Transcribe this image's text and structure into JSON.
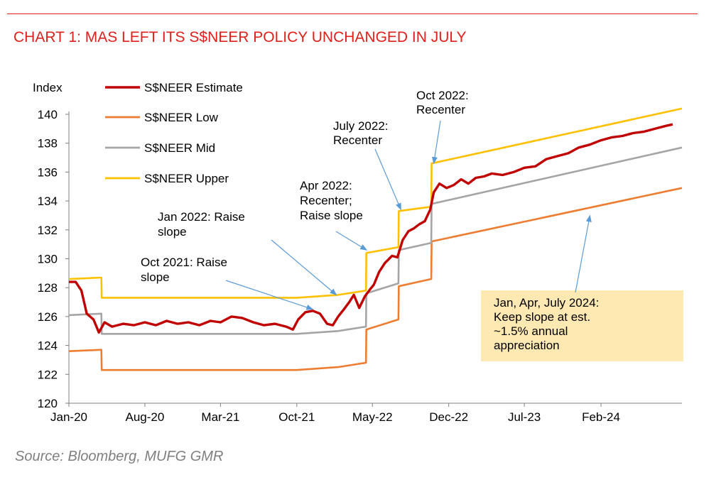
{
  "title": "CHART 1: MAS LEFT ITS S$NEER POLICY UNCHANGED IN JULY",
  "source": "Source: Bloomberg, MUFG GMR",
  "colors": {
    "accent": "#e0201b",
    "estimate": "#c00000",
    "low": "#ed7d31",
    "mid": "#a5a5a5",
    "upper": "#ffc000",
    "arrow": "#5b9bd5",
    "callout_bg": "#ffe9b3"
  },
  "chart_data": {
    "type": "line",
    "ylabel": "Index",
    "xlabel": "",
    "ylim": [
      120,
      140
    ],
    "yticks": [
      "120",
      "122",
      "124",
      "126",
      "128",
      "130",
      "132",
      "134",
      "136",
      "138",
      "140"
    ],
    "x_tick_labels": [
      "Jan-20",
      "Aug-20",
      "Mar-21",
      "Oct-21",
      "May-22",
      "Dec-22",
      "Jul-23",
      "Feb-24"
    ],
    "xlim": [
      "2020-01-01",
      "2024-09-15"
    ],
    "grid": false,
    "legend_position": "top-left",
    "series": [
      {
        "name": "S$NEER Estimate",
        "color": "#c00000",
        "points": [
          [
            "2020-01-01",
            128.4
          ],
          [
            "2020-01-20",
            128.4
          ],
          [
            "2020-02-05",
            127.8
          ],
          [
            "2020-02-20",
            126.2
          ],
          [
            "2020-03-10",
            125.8
          ],
          [
            "2020-03-25",
            124.9
          ],
          [
            "2020-04-10",
            125.6
          ],
          [
            "2020-05-01",
            125.3
          ],
          [
            "2020-06-01",
            125.5
          ],
          [
            "2020-07-01",
            125.4
          ],
          [
            "2020-08-01",
            125.6
          ],
          [
            "2020-09-01",
            125.4
          ],
          [
            "2020-10-01",
            125.7
          ],
          [
            "2020-11-01",
            125.5
          ],
          [
            "2020-12-01",
            125.6
          ],
          [
            "2021-01-01",
            125.4
          ],
          [
            "2021-02-01",
            125.7
          ],
          [
            "2021-03-01",
            125.6
          ],
          [
            "2021-04-01",
            126.0
          ],
          [
            "2021-05-01",
            125.9
          ],
          [
            "2021-06-01",
            125.6
          ],
          [
            "2021-07-01",
            125.4
          ],
          [
            "2021-08-01",
            125.5
          ],
          [
            "2021-09-01",
            125.3
          ],
          [
            "2021-09-20",
            125.1
          ],
          [
            "2021-10-05",
            125.8
          ],
          [
            "2021-10-25",
            126.3
          ],
          [
            "2021-11-15",
            126.4
          ],
          [
            "2021-12-05",
            126.2
          ],
          [
            "2021-12-25",
            125.5
          ],
          [
            "2022-01-10",
            125.4
          ],
          [
            "2022-01-25",
            126.0
          ],
          [
            "2022-02-10",
            126.5
          ],
          [
            "2022-02-25",
            127.0
          ],
          [
            "2022-03-10",
            127.5
          ],
          [
            "2022-03-25",
            126.6
          ],
          [
            "2022-04-10",
            127.4
          ],
          [
            "2022-04-25",
            127.9
          ],
          [
            "2022-05-05",
            128.2
          ],
          [
            "2022-05-20",
            129.1
          ],
          [
            "2022-06-05",
            129.7
          ],
          [
            "2022-06-25",
            130.2
          ],
          [
            "2022-07-10",
            130.1
          ],
          [
            "2022-07-25",
            131.3
          ],
          [
            "2022-08-10",
            131.9
          ],
          [
            "2022-08-25",
            132.1
          ],
          [
            "2022-09-10",
            132.4
          ],
          [
            "2022-09-25",
            132.6
          ],
          [
            "2022-10-10",
            133.4
          ],
          [
            "2022-10-20",
            134.6
          ],
          [
            "2022-11-05",
            135.2
          ],
          [
            "2022-11-25",
            134.9
          ],
          [
            "2022-12-15",
            135.1
          ],
          [
            "2023-01-05",
            135.5
          ],
          [
            "2023-01-25",
            135.2
          ],
          [
            "2023-02-15",
            135.6
          ],
          [
            "2023-03-10",
            135.7
          ],
          [
            "2023-04-01",
            135.9
          ],
          [
            "2023-05-01",
            135.8
          ],
          [
            "2023-06-01",
            136.0
          ],
          [
            "2023-07-01",
            136.3
          ],
          [
            "2023-08-01",
            136.4
          ],
          [
            "2023-09-01",
            136.9
          ],
          [
            "2023-10-01",
            137.1
          ],
          [
            "2023-11-01",
            137.3
          ],
          [
            "2023-12-01",
            137.7
          ],
          [
            "2024-01-01",
            137.9
          ],
          [
            "2024-02-01",
            138.2
          ],
          [
            "2024-03-01",
            138.4
          ],
          [
            "2024-04-01",
            138.5
          ],
          [
            "2024-05-01",
            138.7
          ],
          [
            "2024-06-01",
            138.8
          ],
          [
            "2024-07-01",
            139.0
          ],
          [
            "2024-08-01",
            139.2
          ],
          [
            "2024-08-20",
            139.3
          ]
        ]
      },
      {
        "name": "S$NEER Low",
        "color": "#ed7d31",
        "points": [
          [
            "2020-01-01",
            123.6
          ],
          [
            "2020-04-01",
            123.7
          ],
          [
            "2020-04-02",
            122.3
          ],
          [
            "2021-10-01",
            122.3
          ],
          [
            "2022-01-25",
            122.5
          ],
          [
            "2022-04-13",
            122.8
          ],
          [
            "2022-04-14",
            125.1
          ],
          [
            "2022-07-13",
            125.8
          ],
          [
            "2022-07-14",
            128.1
          ],
          [
            "2022-10-13",
            128.6
          ],
          [
            "2022-10-14",
            131.2
          ],
          [
            "2024-09-15",
            134.9
          ]
        ]
      },
      {
        "name": "S$NEER Mid",
        "color": "#a5a5a5",
        "points": [
          [
            "2020-01-01",
            126.1
          ],
          [
            "2020-04-01",
            126.2
          ],
          [
            "2020-04-02",
            124.8
          ],
          [
            "2021-10-01",
            124.8
          ],
          [
            "2022-01-25",
            125.0
          ],
          [
            "2022-04-13",
            125.3
          ],
          [
            "2022-04-14",
            127.6
          ],
          [
            "2022-07-13",
            128.3
          ],
          [
            "2022-07-14",
            130.6
          ],
          [
            "2022-10-13",
            131.1
          ],
          [
            "2022-10-14",
            133.8
          ],
          [
            "2024-09-15",
            137.7
          ]
        ]
      },
      {
        "name": "S$NEER Upper",
        "color": "#ffc000",
        "points": [
          [
            "2020-01-01",
            128.6
          ],
          [
            "2020-04-01",
            128.7
          ],
          [
            "2020-04-02",
            127.3
          ],
          [
            "2021-10-01",
            127.3
          ],
          [
            "2022-01-25",
            127.5
          ],
          [
            "2022-04-13",
            127.8
          ],
          [
            "2022-04-14",
            130.4
          ],
          [
            "2022-07-13",
            130.8
          ],
          [
            "2022-07-14",
            133.3
          ],
          [
            "2022-10-13",
            133.6
          ],
          [
            "2022-10-14",
            136.6
          ],
          [
            "2024-09-15",
            140.4
          ]
        ]
      }
    ],
    "annotations": [
      {
        "lines": [
          "Oct 2021: Raise",
          "slope"
        ],
        "target": [
          "2021-11-15",
          126.5
        ]
      },
      {
        "lines": [
          "Jan 2022: Raise",
          "slope"
        ],
        "target": [
          "2022-01-20",
          127.5
        ]
      },
      {
        "lines": [
          "Apr 2022:",
          "Recenter;",
          "Raise slope"
        ],
        "target": [
          "2022-04-15",
          130.6
        ]
      },
      {
        "lines": [
          "July 2022:",
          "Recenter"
        ],
        "target": [
          "2022-07-20",
          133.4
        ]
      },
      {
        "lines": [
          "Oct 2022:",
          "Recenter"
        ],
        "target": [
          "2022-10-20",
          136.6
        ]
      },
      {
        "lines": [
          "Jan, Apr, July 2024:",
          "Keep slope at est.",
          "~1.5% annual",
          "appreciation"
        ],
        "target": [
          "2024-01-01",
          133.0
        ]
      }
    ]
  }
}
